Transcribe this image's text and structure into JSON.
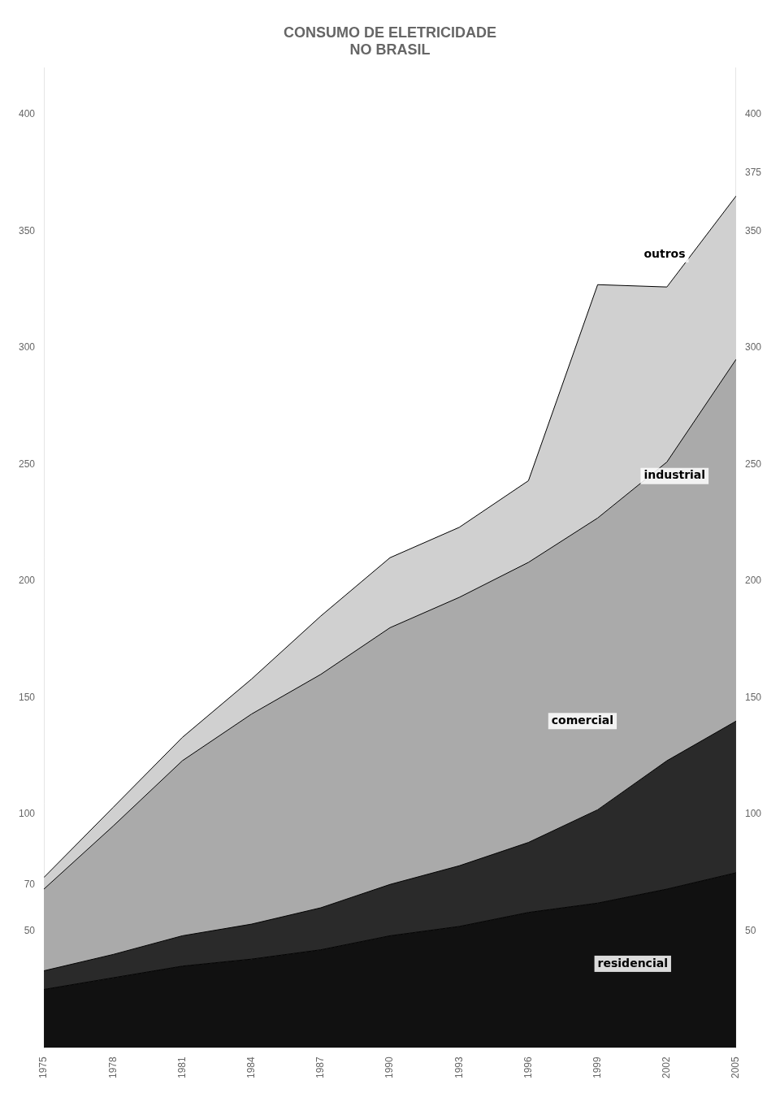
{
  "chart_data": {
    "type": "area",
    "stacked": true,
    "title": [
      "CONSUMO DE ELETRICIDADE",
      "NO BRASIL"
    ],
    "x": [
      1975,
      1978,
      1981,
      1984,
      1987,
      1990,
      1993,
      1996,
      1999,
      2002,
      2005
    ],
    "series": [
      {
        "name": "residencial",
        "color": "#111111",
        "values": [
          25,
          30,
          35,
          38,
          42,
          48,
          52,
          58,
          62,
          68,
          75
        ]
      },
      {
        "name": "comercial",
        "color": "#2a2a2a",
        "values": [
          8,
          10,
          13,
          15,
          18,
          22,
          26,
          30,
          40,
          55,
          65
        ]
      },
      {
        "name": "industrial",
        "color": "#aaaaaa",
        "values": [
          35,
          55,
          75,
          90,
          100,
          110,
          115,
          120,
          125,
          128,
          155
        ]
      },
      {
        "name": "outros",
        "color": "#d0d0d0",
        "values": [
          5,
          8,
          10,
          15,
          25,
          30,
          30,
          35,
          100,
          75,
          70
        ]
      }
    ],
    "xlim": [
      1975,
      2005
    ],
    "xticks": [
      1975,
      1978,
      1981,
      1984,
      1987,
      1990,
      1993,
      1996,
      1999,
      2002,
      2005
    ],
    "ylim": [
      0,
      420
    ],
    "yticks": [
      50,
      70,
      100,
      150,
      200,
      250,
      300,
      350,
      400
    ],
    "y2lim": [
      0,
      420
    ],
    "y2ticks": [
      50,
      100,
      150,
      200,
      250,
      300,
      350,
      375,
      400
    ],
    "grid": false,
    "annotations": [
      {
        "text": "outros",
        "x": 2001,
        "y": 340
      },
      {
        "text": "industrial",
        "x": 2001,
        "y": 245
      },
      {
        "text": "comercial",
        "x": 1997,
        "y": 140
      },
      {
        "text": "residencial",
        "x": 1999,
        "y": 36
      }
    ]
  }
}
